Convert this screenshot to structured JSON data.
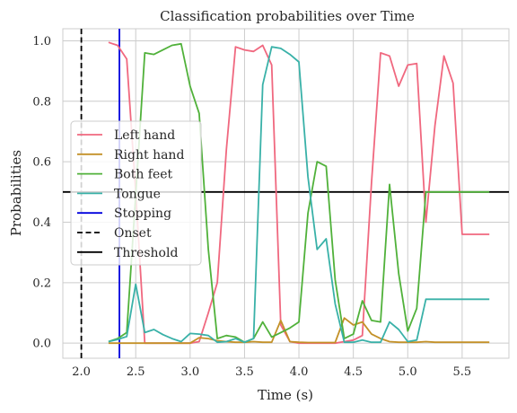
{
  "chart_data": {
    "type": "line",
    "title": "Classification probabilities over Time",
    "xlabel": "Time (s)",
    "ylabel": "Probabilities",
    "xlim": [
      1.83,
      5.93
    ],
    "ylim": [
      -0.05,
      1.04
    ],
    "xticks": [
      2.0,
      2.5,
      3.0,
      3.5,
      4.0,
      4.5,
      5.0,
      5.5
    ],
    "xtick_labels": [
      "2.0",
      "2.5",
      "3.0",
      "3.5",
      "4.0",
      "4.5",
      "5.0",
      "5.5"
    ],
    "yticks": [
      0.0,
      0.2,
      0.4,
      0.6,
      0.8,
      1.0
    ],
    "ytick_labels": [
      "0.0",
      "0.2",
      "0.4",
      "0.6",
      "0.8",
      "1.0"
    ],
    "grid": true,
    "legend_position": "center-left",
    "x": [
      2.25,
      2.333,
      2.417,
      2.5,
      2.583,
      2.667,
      2.75,
      2.833,
      2.917,
      3.0,
      3.083,
      3.167,
      3.25,
      3.333,
      3.417,
      3.5,
      3.583,
      3.667,
      3.75,
      3.833,
      3.917,
      4.0,
      4.083,
      4.167,
      4.25,
      4.333,
      4.417,
      4.5,
      4.583,
      4.667,
      4.75,
      4.833,
      4.917,
      5.0,
      5.083,
      5.167,
      5.25,
      5.333,
      5.417,
      5.5,
      5.583,
      5.667,
      5.75
    ],
    "series": [
      {
        "name": "Left hand",
        "color": "#f0687f",
        "values": [
          0.995,
          0.985,
          0.94,
          0.5,
          0.0,
          0.0,
          0.0,
          0.0,
          0.0,
          0.0,
          0.005,
          0.1,
          0.2,
          0.64,
          0.98,
          0.97,
          0.965,
          0.985,
          0.92,
          0.06,
          0.005,
          0.0,
          0.0,
          0.0,
          0.0,
          0.0,
          0.005,
          0.01,
          0.025,
          0.53,
          0.96,
          0.95,
          0.85,
          0.92,
          0.925,
          0.4,
          0.72,
          0.95,
          0.86,
          0.36,
          0.36,
          0.36,
          0.36
        ]
      },
      {
        "name": "Right hand",
        "color": "#c39128",
        "values": [
          0.0,
          0.0,
          0.0,
          0.0,
          0.0,
          0.0,
          0.0,
          0.0,
          0.0,
          0.0,
          0.018,
          0.015,
          0.008,
          0.005,
          0.003,
          0.003,
          0.005,
          0.003,
          0.003,
          0.075,
          0.005,
          0.003,
          0.002,
          0.002,
          0.002,
          0.002,
          0.083,
          0.06,
          0.07,
          0.03,
          0.015,
          0.005,
          0.003,
          0.003,
          0.003,
          0.005,
          0.003,
          0.003,
          0.003,
          0.003,
          0.003,
          0.003,
          0.003
        ]
      },
      {
        "name": "Both feet",
        "color": "#50b13a",
        "values": [
          0.005,
          0.015,
          0.035,
          0.49,
          0.96,
          0.955,
          0.97,
          0.985,
          0.99,
          0.85,
          0.76,
          0.31,
          0.015,
          0.025,
          0.02,
          0.003,
          0.015,
          0.07,
          0.02,
          0.035,
          0.05,
          0.07,
          0.43,
          0.6,
          0.585,
          0.21,
          0.015,
          0.03,
          0.14,
          0.075,
          0.07,
          0.525,
          0.23,
          0.04,
          0.115,
          0.5,
          0.5,
          0.5,
          0.5,
          0.5,
          0.5,
          0.5,
          0.5
        ]
      },
      {
        "name": "Tongue",
        "color": "#39b1a8",
        "values": [
          0.005,
          0.012,
          0.022,
          0.195,
          0.035,
          0.045,
          0.028,
          0.015,
          0.005,
          0.032,
          0.03,
          0.025,
          0.003,
          0.005,
          0.015,
          0.003,
          0.015,
          0.855,
          0.98,
          0.975,
          0.955,
          0.93,
          0.55,
          0.31,
          0.345,
          0.13,
          0.003,
          0.003,
          0.01,
          0.003,
          0.003,
          0.07,
          0.045,
          0.005,
          0.01,
          0.145,
          0.145,
          0.145,
          0.145,
          0.145,
          0.145,
          0.145,
          0.145
        ]
      }
    ],
    "vlines": [
      {
        "name": "Stopping",
        "x": 2.35,
        "color": "#0000dd",
        "style": "solid"
      },
      {
        "name": "Onset",
        "x": 2.0,
        "color": "#000000",
        "style": "dashed"
      }
    ],
    "hlines": [
      {
        "name": "Threshold",
        "y": 0.5,
        "color": "#000000",
        "style": "solid"
      }
    ],
    "legend": [
      {
        "label": "Left hand",
        "color": "#f0687f",
        "style": "solid"
      },
      {
        "label": "Right hand",
        "color": "#c39128",
        "style": "solid"
      },
      {
        "label": "Both feet",
        "color": "#50b13a",
        "style": "solid"
      },
      {
        "label": "Tongue",
        "color": "#39b1a8",
        "style": "solid"
      },
      {
        "label": "Stopping",
        "color": "#0000dd",
        "style": "solid"
      },
      {
        "label": "Onset",
        "color": "#000000",
        "style": "dashed"
      },
      {
        "label": "Threshold",
        "color": "#000000",
        "style": "solid"
      }
    ]
  }
}
